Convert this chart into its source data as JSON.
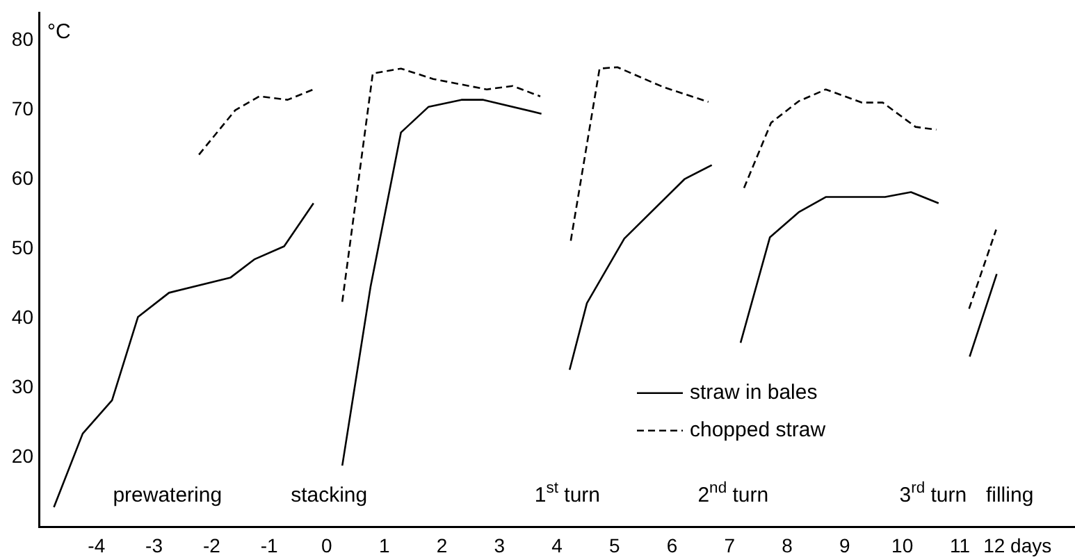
{
  "chart_data": {
    "type": "line",
    "ylabel": "°C",
    "xlim": [
      -5,
      13
    ],
    "xticks": [
      -4,
      -3,
      -2,
      -1,
      0,
      1,
      2,
      3,
      4,
      5,
      6,
      7,
      8,
      9,
      10,
      11,
      {
        "value": 12,
        "label": "12 days"
      }
    ],
    "ylim": [
      10,
      84
    ],
    "yticks": [
      20,
      30,
      40,
      50,
      60,
      70,
      80
    ],
    "grid": false,
    "legend": "right",
    "marker": "none",
    "series": [
      {
        "name": "straw in bales",
        "color": "#000000",
        "line_style": "solid",
        "x": [
          -4.74,
          -4.24,
          -3.73,
          -3.28,
          -2.74,
          -1.67,
          -1.26,
          -0.74,
          -0.23,
          null,
          0.27,
          0.76,
          1.29,
          1.77,
          2.34,
          2.72,
          3.73,
          null,
          4.22,
          4.52,
          5.17,
          6.22,
          6.69,
          null,
          7.19,
          7.7,
          8.2,
          8.67,
          9.7,
          10.15,
          10.63,
          null,
          11.17,
          11.64
        ],
        "values": [
          12.8,
          23.4,
          28.2,
          40.2,
          43.7,
          45.9,
          48.5,
          50.4,
          56.6,
          null,
          18.8,
          44.5,
          66.8,
          70.5,
          71.5,
          71.5,
          69.5,
          null,
          32.6,
          42.2,
          51.5,
          60.1,
          62.1,
          null,
          36.5,
          51.7,
          55.3,
          57.5,
          57.5,
          58.2,
          56.6,
          null,
          34.5,
          46.4
        ]
      },
      {
        "name": "chopped straw",
        "color": "#000000",
        "line_style": "dashed",
        "x": [
          -2.22,
          -1.59,
          -1.17,
          -0.68,
          -0.23,
          null,
          0.27,
          0.8,
          1.29,
          1.85,
          2.78,
          3.23,
          3.71,
          null,
          4.24,
          4.74,
          5.05,
          5.66,
          5.86,
          6.63,
          null,
          7.25,
          7.72,
          8.2,
          8.67,
          9.3,
          9.66,
          10.23,
          10.59,
          null,
          11.16,
          11.63
        ],
        "values": [
          63.6,
          70.0,
          72.0,
          71.5,
          73.0,
          null,
          42.4,
          75.3,
          76.0,
          74.5,
          73.0,
          73.5,
          72.0,
          null,
          51.2,
          76.0,
          76.2,
          74.0,
          73.3,
          71.2,
          null,
          58.8,
          68.2,
          71.3,
          73.0,
          71.1,
          71.1,
          67.6,
          67.2,
          null,
          41.4,
          52.8
        ]
      }
    ],
    "annotations": [
      "prewatering",
      "stacking",
      "1$^{st}$ turn",
      "2$^{nd}$ turn",
      "3$^{rd}$ turn",
      "filling"
    ]
  }
}
